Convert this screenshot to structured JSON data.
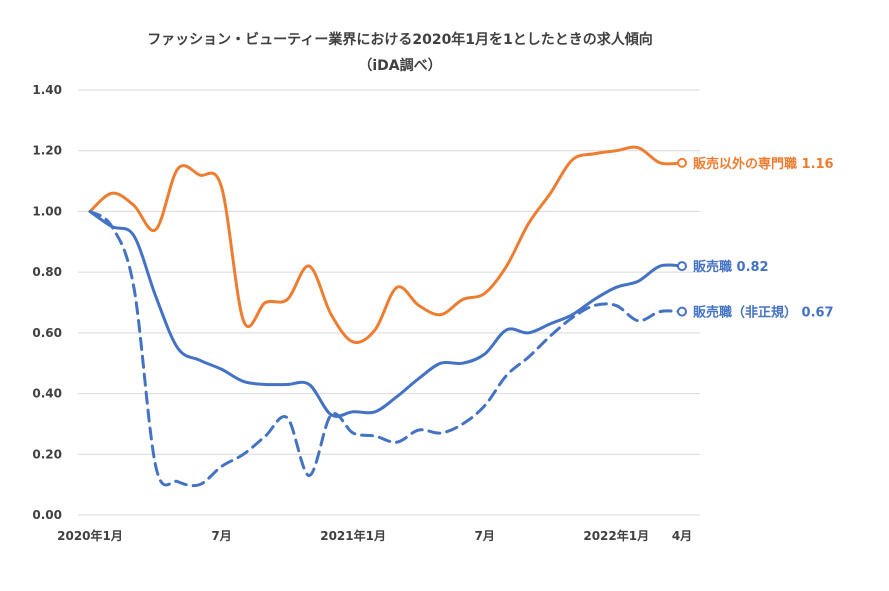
{
  "chart_data": {
    "type": "line",
    "title": "ファッション・ビューティー業界における2020年1月を1としたときの求人傾向",
    "subtitle": "（iDA調べ）",
    "xlabel": "",
    "ylabel": "",
    "ylim": [
      0,
      1.4
    ],
    "yticks": [
      "0.00",
      "0.20",
      "0.40",
      "0.60",
      "0.80",
      "1.00",
      "1.20",
      "1.40"
    ],
    "x": [
      "2020-01",
      "2020-02",
      "2020-03",
      "2020-04",
      "2020-05",
      "2020-06",
      "2020-07",
      "2020-08",
      "2020-09",
      "2020-10",
      "2020-11",
      "2020-12",
      "2021-01",
      "2021-02",
      "2021-03",
      "2021-04",
      "2021-05",
      "2021-06",
      "2021-07",
      "2021-08",
      "2021-09",
      "2021-10",
      "2021-11",
      "2021-12",
      "2022-01",
      "2022-02",
      "2022-03",
      "2022-04"
    ],
    "xtick_labels": [
      {
        "x": "2020-01",
        "label": "2020年1月"
      },
      {
        "x": "2020-07",
        "label": "7月"
      },
      {
        "x": "2021-01",
        "label": "2021年1月"
      },
      {
        "x": "2021-07",
        "label": "7月"
      },
      {
        "x": "2022-01",
        "label": "2022年1月"
      },
      {
        "x": "2022-04",
        "label": "4月"
      }
    ],
    "grid": true,
    "series": [
      {
        "name": "販売以外の専門職",
        "color": "#ed7d31",
        "style": "solid",
        "end_label": "販売以外の専門職 1.16",
        "values": [
          1.0,
          1.06,
          1.02,
          0.94,
          1.14,
          1.12,
          1.08,
          0.64,
          0.7,
          0.71,
          0.82,
          0.66,
          0.57,
          0.61,
          0.75,
          0.69,
          0.66,
          0.71,
          0.73,
          0.82,
          0.96,
          1.06,
          1.17,
          1.19,
          1.2,
          1.21,
          1.16,
          1.16
        ]
      },
      {
        "name": "販売職",
        "color": "#4472c4",
        "style": "solid",
        "end_label": "販売職 0.82",
        "values": [
          1.0,
          0.95,
          0.92,
          0.72,
          0.55,
          0.51,
          0.48,
          0.44,
          0.43,
          0.43,
          0.43,
          0.33,
          0.34,
          0.34,
          0.39,
          0.45,
          0.5,
          0.5,
          0.53,
          0.61,
          0.6,
          0.63,
          0.66,
          0.71,
          0.75,
          0.77,
          0.82,
          0.82
        ]
      },
      {
        "name": "販売職（非正規）",
        "color": "#4472c4",
        "style": "dashed",
        "end_label": "販売職（非正規） 0.67",
        "values": [
          1.0,
          0.95,
          0.75,
          0.16,
          0.11,
          0.1,
          0.16,
          0.2,
          0.26,
          0.32,
          0.13,
          0.33,
          0.27,
          0.26,
          0.24,
          0.28,
          0.27,
          0.3,
          0.36,
          0.46,
          0.52,
          0.59,
          0.65,
          0.69,
          0.69,
          0.64,
          0.67,
          0.67
        ]
      }
    ]
  }
}
